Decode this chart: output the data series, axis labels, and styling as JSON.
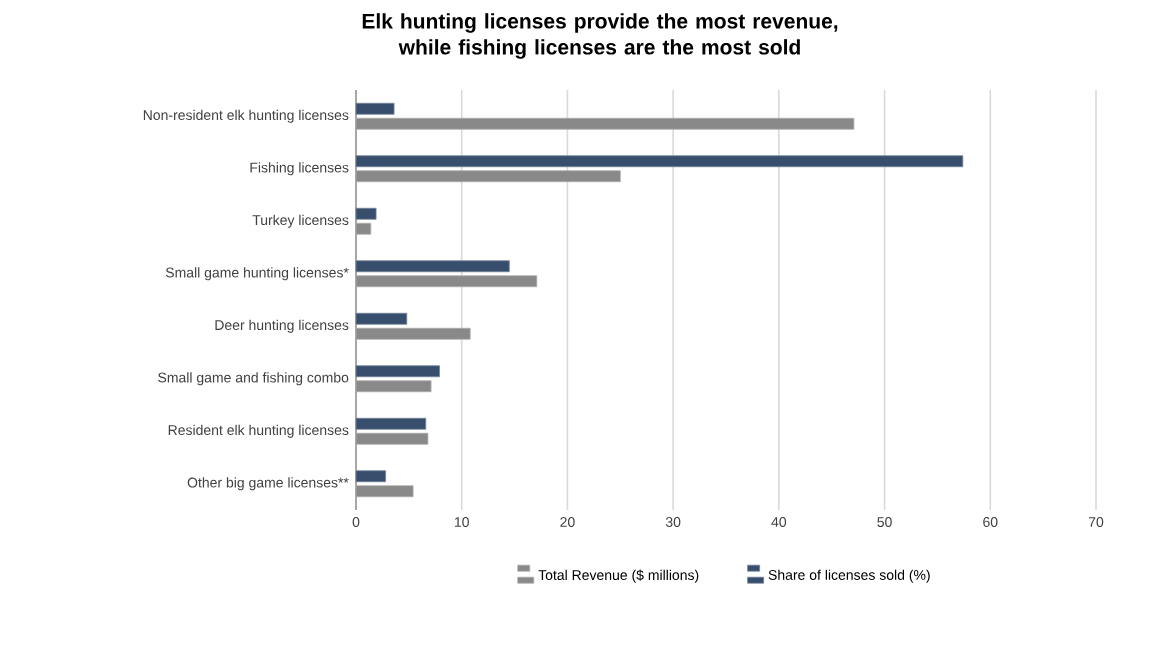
{
  "chart_data": {
    "type": "bar",
    "orientation": "horizontal",
    "title": "Elk hunting licenses provide the most revenue, while fishing licenses are the most sold",
    "categories": [
      "Non-resident elk hunting licenses",
      "Fishing licenses",
      "Turkey licenses",
      "Small game hunting licenses*",
      "Deer hunting licenses",
      "Small game and fishing combo",
      "Resident elk hunting licenses",
      "Other big game licenses**"
    ],
    "series": [
      {
        "name": "Total Revenue ($ millions)",
        "color": "#898989",
        "values": [
          47.1,
          25.0,
          1.4,
          17.1,
          10.8,
          7.1,
          6.8,
          5.4
        ]
      },
      {
        "name": "Share of licenses sold (%)",
        "color": "#374e6d",
        "values": [
          3.6,
          57.4,
          1.9,
          14.5,
          4.8,
          7.9,
          6.6,
          2.8
        ]
      }
    ],
    "xlim": [
      0,
      70
    ],
    "xticks": [
      0,
      10,
      20,
      30,
      40,
      50,
      60,
      70
    ],
    "grid": "x",
    "legend": "bottom"
  }
}
